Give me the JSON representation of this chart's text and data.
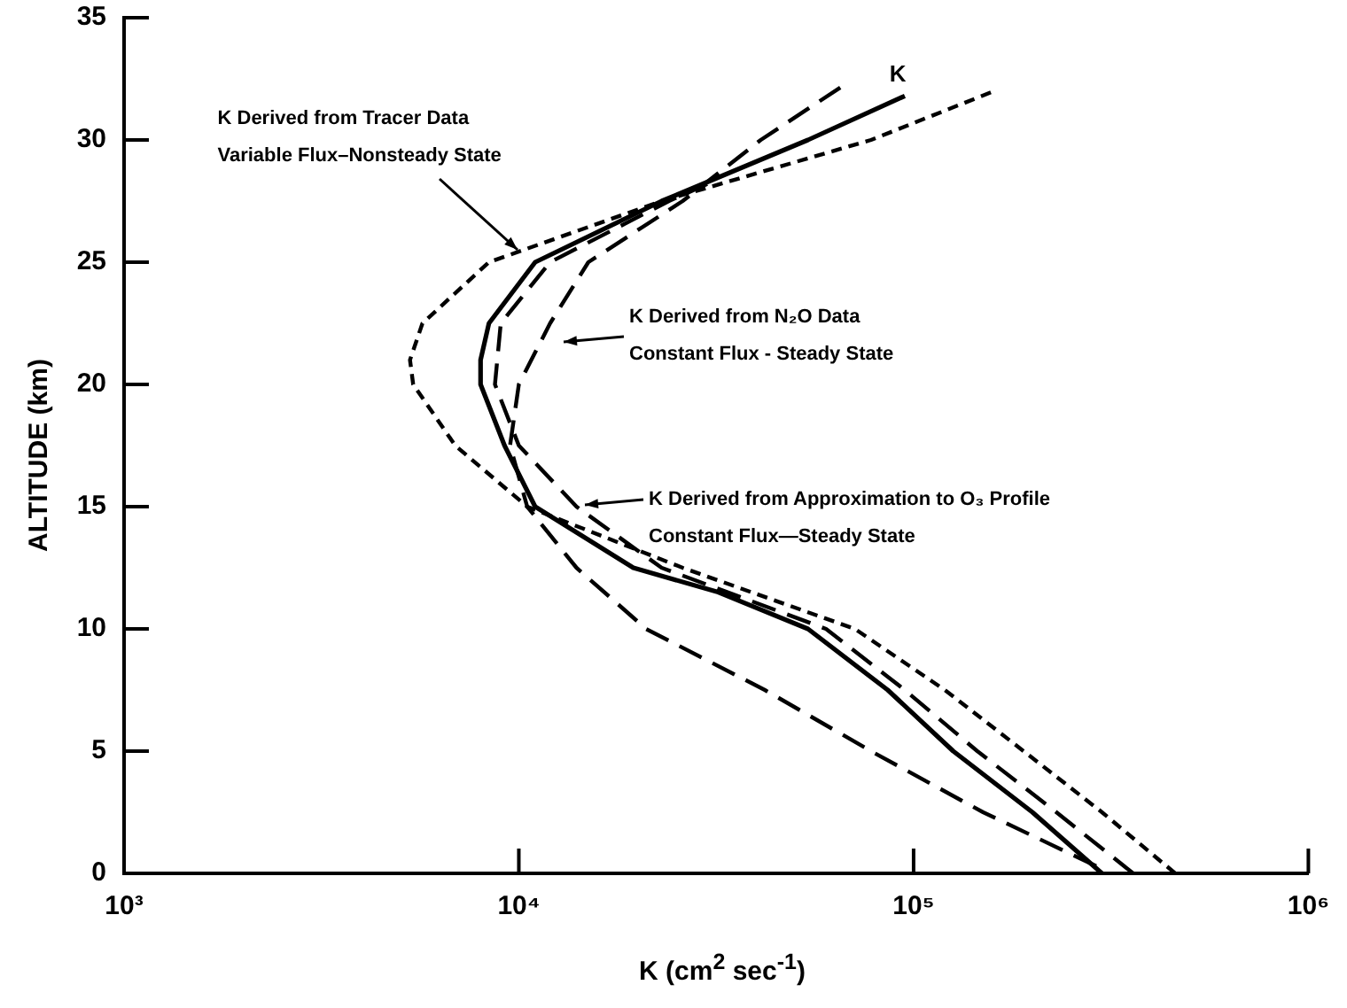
{
  "chart_data": {
    "type": "line",
    "xlabel": "K (cm$^{2}$ sec$^{-1}$)",
    "ylabel": "ALTITUDE (km)",
    "log": "x",
    "grid": false,
    "legend": false,
    "marker": "none",
    "xlim": [
      1000,
      1000000
    ],
    "xticks": [
      {
        "value": 1000,
        "label": "10³"
      },
      {
        "value": 10000,
        "label": "10⁴"
      },
      {
        "value": 100000,
        "label": "10⁵"
      },
      {
        "value": 1000000,
        "label": "10⁶"
      }
    ],
    "ylim": [
      0,
      35
    ],
    "yticks": [
      0,
      5,
      10,
      15,
      20,
      25,
      30,
      35
    ],
    "series": [
      {
        "name": "K",
        "color": "#000000",
        "line_style": "solid",
        "x": [
          300000,
          200000,
          126000,
          86000,
          54000,
          32000,
          19500,
          11000,
          9200,
          8000,
          8000,
          8400,
          11000,
          23000,
          54000,
          95000
        ],
        "values": [
          0,
          2.5,
          5,
          7.5,
          10,
          11.5,
          12.5,
          15,
          17.5,
          20,
          21,
          22.5,
          25,
          27.5,
          30,
          31.8
        ]
      },
      {
        "color": "#000000",
        "line_style": "dotted",
        "x": [
          460000,
          300000,
          190000,
          120000,
          71000,
          26000,
          10500,
          6900,
          5400,
          5300,
          5700,
          8400,
          23000,
          78000,
          160000
        ],
        "values": [
          0,
          2.5,
          5,
          7.5,
          10,
          12.5,
          15,
          17.5,
          20,
          21,
          22.5,
          25,
          27.5,
          30,
          32
        ]
      },
      {
        "color": "#000000",
        "line_style": "dashed",
        "x": [
          290000,
          150000,
          78000,
          42000,
          21000,
          14000,
          10500,
          9500,
          10000,
          12000,
          15000,
          26000,
          41000,
          66000
        ],
        "values": [
          0.3,
          2.5,
          5,
          7.5,
          10,
          12.5,
          15,
          17.5,
          20,
          22.5,
          25,
          27.5,
          30,
          32.2
        ]
      },
      {
        "color": "#000000",
        "line_style": "dashed",
        "x": [
          360000,
          230000,
          145000,
          95000,
          60000,
          23000,
          14000,
          10000,
          8700,
          9000,
          12000,
          24000,
          30000
        ],
        "values": [
          0,
          2.5,
          5,
          7.5,
          10,
          12.5,
          15,
          17.5,
          20,
          22.5,
          25,
          27.5,
          28.2
        ]
      }
    ],
    "annotations": [
      {
        "text": "K Derived from Tracer Data\nVariable Flux–Nonsteady State",
        "x": 9900,
        "y": 25.5
      },
      "K Derived from N₂O Data\nConstant Flux - Steady State",
      "K Derived from Approximation to O₃ Profile\nConstant Flux—Steady State"
    ]
  }
}
